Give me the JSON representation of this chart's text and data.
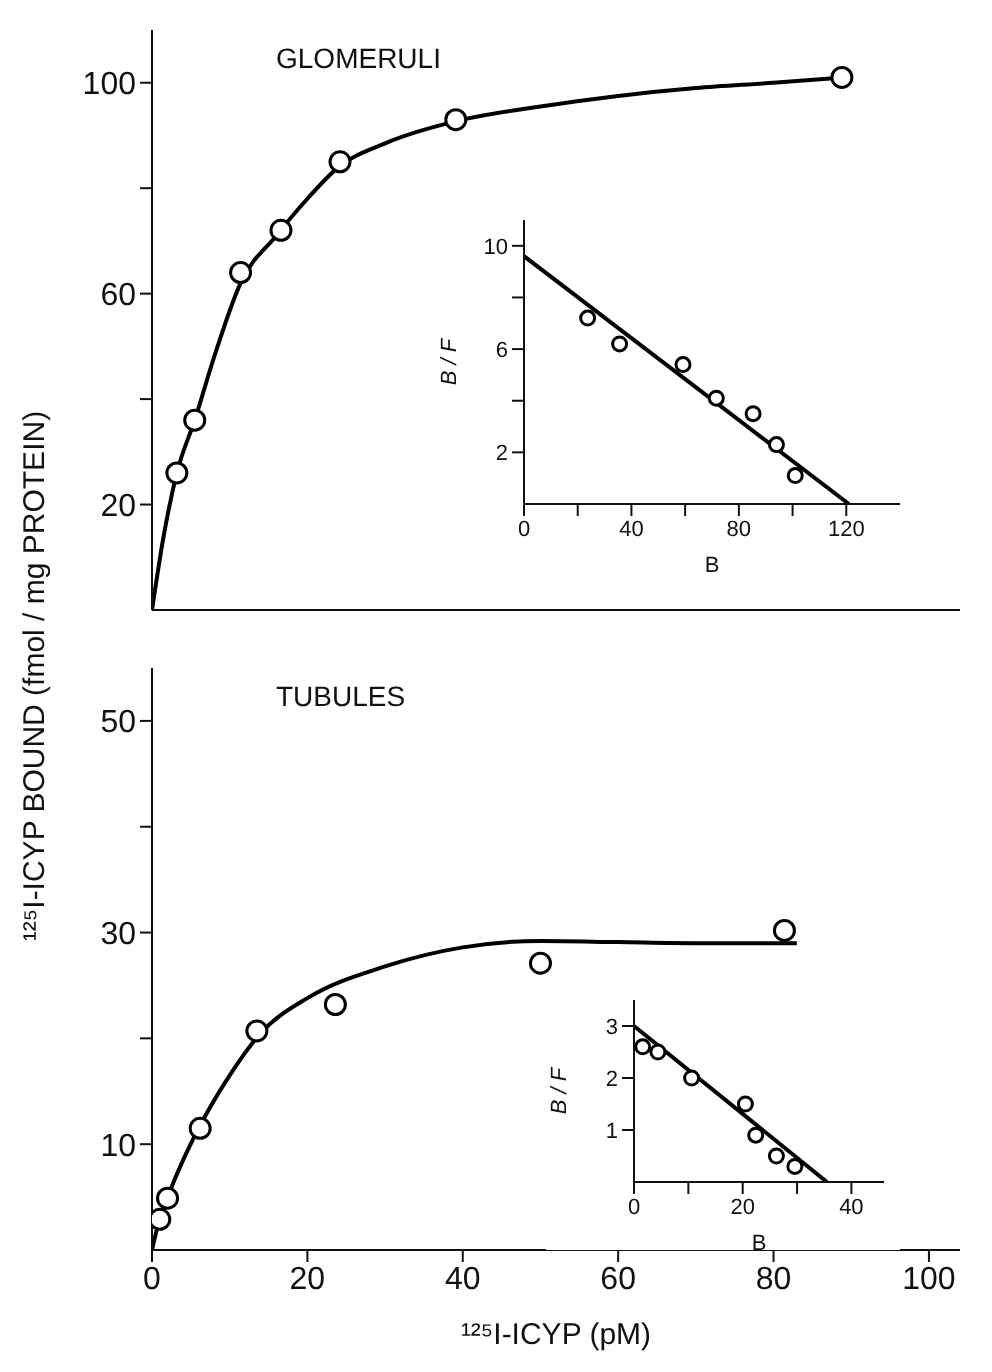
{
  "chart_data": [
    {
      "type": "scatter",
      "title": "GLOMERULI",
      "ylabel": "¹²⁵I-ICYP BOUND (fmol / mg PROTEIN)",
      "xlim": [
        0,
        104
      ],
      "xticks": [
        0,
        20,
        40,
        60,
        80,
        100
      ],
      "ylim": [
        0,
        110
      ],
      "yticks": [
        20,
        {
          "value": 40,
          "label": null
        },
        60,
        {
          "value": 80,
          "label": null
        },
        100
      ],
      "tick_labels": "y",
      "series": [
        {
          "type": "line",
          "color": "#000000",
          "x": [
            0,
            1.5,
            3.2,
            5.5,
            8,
            11.4,
            16,
            20,
            24,
            30,
            40,
            50,
            60,
            70,
            80,
            89
          ],
          "values": [
            0,
            14,
            26,
            36,
            48,
            62,
            71,
            78,
            84,
            88.5,
            93,
            95.5,
            97.5,
            99,
            100,
            101
          ]
        },
        {
          "type": "scatter",
          "marker": "circle",
          "color": "#000000",
          "x": [
            3.2,
            5.5,
            11.4,
            16.6,
            24.2,
            39.1,
            88.8
          ],
          "values": [
            26,
            36,
            64,
            72,
            85,
            93,
            101
          ]
        }
      ]
    },
    {
      "type": "scatter",
      "xlabel": "B",
      "ylabel": "B / F",
      "xlim": [
        0,
        140
      ],
      "xticks": [
        0,
        {
          "value": 20,
          "label": null
        },
        40,
        {
          "value": 60,
          "label": null
        },
        80,
        {
          "value": 100,
          "label": null
        },
        120
      ],
      "ylim": [
        0,
        11
      ],
      "yticks": [
        2,
        {
          "value": 4,
          "label": null
        },
        6,
        {
          "value": 8,
          "label": null
        },
        10
      ],
      "series": [
        {
          "type": "line",
          "color": "#000000",
          "x": [
            0,
            121
          ],
          "values": [
            9.6,
            0
          ]
        },
        {
          "type": "scatter",
          "marker": "circle",
          "color": "#000000",
          "x": [
            23.7,
            35.6,
            59.2,
            71.6,
            85.3,
            94,
            101
          ],
          "values": [
            7.2,
            6.2,
            5.4,
            4.1,
            3.5,
            2.3,
            1.1
          ]
        }
      ]
    },
    {
      "type": "scatter",
      "title": "TUBULES",
      "xlabel": "¹²⁵I-ICYP (pM)",
      "xlim": [
        0,
        104
      ],
      "xticks": [
        0,
        20,
        40,
        60,
        80,
        100
      ],
      "ylim": [
        0,
        55
      ],
      "yticks": [
        10,
        {
          "value": 20,
          "label": null
        },
        30,
        {
          "value": 40,
          "label": null
        },
        50
      ],
      "series": [
        {
          "type": "line",
          "color": "#000000",
          "x": [
            0,
            1,
            2,
            4,
            6,
            10,
            14,
            20,
            30,
            40,
            50,
            60,
            70,
            83
          ],
          "values": [
            0,
            3,
            5,
            8.5,
            11.5,
            16.5,
            20.5,
            23.8,
            26.8,
            28.6,
            29.2,
            29.1,
            29,
            29
          ]
        },
        {
          "type": "scatter",
          "marker": "circle",
          "color": "#000000",
          "x": [
            1,
            2,
            6.2,
            13.5,
            23.6,
            50,
            81.4
          ],
          "values": [
            2.9,
            4.9,
            11.5,
            20.7,
            23.2,
            27.1,
            30.2
          ]
        }
      ]
    },
    {
      "type": "scatter",
      "xlabel": "B",
      "ylabel": "B / F",
      "xlim": [
        0,
        46
      ],
      "xticks": [
        0,
        {
          "value": 10,
          "label": null
        },
        20,
        {
          "value": 30,
          "label": null
        },
        40
      ],
      "ylim": [
        0,
        3.5
      ],
      "yticks": [
        1,
        2,
        3
      ],
      "series": [
        {
          "type": "line",
          "color": "#000000",
          "x": [
            0,
            35.5
          ],
          "values": [
            3,
            0
          ]
        },
        {
          "type": "scatter",
          "marker": "circle",
          "color": "#000000",
          "x": [
            1.6,
            4.4,
            10.6,
            20.5,
            22.4,
            26.2,
            29.6
          ],
          "values": [
            2.6,
            2.5,
            2,
            1.5,
            0.9,
            0.5,
            0.3
          ]
        }
      ]
    }
  ]
}
